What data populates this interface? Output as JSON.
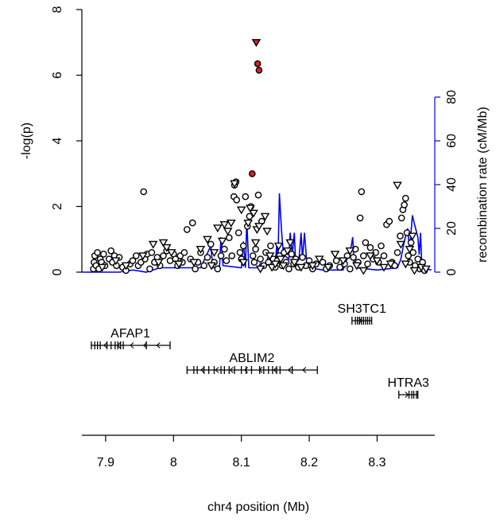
{
  "chart_data": {
    "type": "scatter",
    "xlabel": "chr4 position (Mb)",
    "ylabel": "-log(p)",
    "y2label": "recombination rate (cM/Mb)",
    "xlim": [
      7.865,
      8.385
    ],
    "ylim": [
      0,
      8
    ],
    "y2lim": [
      0,
      80
    ],
    "xticks": [
      "7.9",
      "8",
      "8.1",
      "8.2",
      "8.3"
    ],
    "yticks": [
      "0",
      "2",
      "4",
      "6",
      "8"
    ],
    "y2ticks": [
      "0",
      "20",
      "40",
      "60",
      "80"
    ],
    "colors": {
      "recomb": "#0000ee",
      "highlight": "#e02020",
      "marker": "#000000"
    },
    "highlight_points": [
      {
        "x": 8.122,
        "y": 7.0,
        "shape": "triangle-down"
      },
      {
        "x": 8.124,
        "y": 6.35,
        "shape": "circle"
      },
      {
        "x": 8.126,
        "y": 6.15,
        "shape": "circle"
      },
      {
        "x": 8.116,
        "y": 3.0,
        "shape": "circle"
      }
    ],
    "circle_points": [
      [
        7.882,
        0.1
      ],
      [
        7.883,
        0.3
      ],
      [
        7.884,
        0.5
      ],
      [
        7.886,
        0.2
      ],
      [
        7.888,
        0.6
      ],
      [
        7.89,
        0.1
      ],
      [
        7.892,
        0.4
      ],
      [
        7.894,
        0.3
      ],
      [
        7.897,
        0.55
      ],
      [
        7.899,
        0.2
      ],
      [
        7.905,
        0.4
      ],
      [
        7.908,
        0.65
      ],
      [
        7.91,
        0.3
      ],
      [
        7.913,
        0.5
      ],
      [
        7.916,
        0.2
      ],
      [
        7.92,
        0.45
      ],
      [
        7.925,
        0.15
      ],
      [
        7.93,
        0.05
      ],
      [
        7.936,
        0.25
      ],
      [
        7.94,
        0.35
      ],
      [
        7.945,
        0.5
      ],
      [
        7.948,
        0.2
      ],
      [
        7.952,
        0.3
      ],
      [
        7.956,
        2.45
      ],
      [
        7.958,
        0.4
      ],
      [
        7.961,
        0.55
      ],
      [
        7.965,
        0.1
      ],
      [
        7.968,
        0.6
      ],
      [
        7.972,
        0.3
      ],
      [
        7.976,
        0.45
      ],
      [
        7.98,
        0.2
      ],
      [
        7.985,
        0.5
      ],
      [
        7.99,
        0.65
      ],
      [
        7.995,
        0.35
      ],
      [
        8.0,
        0.55
      ],
      [
        8.003,
        0.4
      ],
      [
        8.006,
        0.2
      ],
      [
        8.01,
        0.5
      ],
      [
        8.013,
        0.3
      ],
      [
        8.016,
        0.6
      ],
      [
        8.02,
        1.3
      ],
      [
        8.025,
        0.4
      ],
      [
        8.028,
        1.5
      ],
      [
        8.032,
        0.1
      ],
      [
        8.036,
        0.3
      ],
      [
        8.04,
        0.6
      ],
      [
        8.045,
        0.2
      ],
      [
        8.05,
        0.45
      ],
      [
        8.055,
        0.85
      ],
      [
        8.06,
        0.3
      ],
      [
        8.065,
        0.1
      ],
      [
        8.07,
        0.5
      ],
      [
        8.075,
        0.7
      ],
      [
        8.078,
        0.35
      ],
      [
        8.082,
        1.05
      ],
      [
        8.086,
        0.5
      ],
      [
        8.089,
        2.3
      ],
      [
        8.09,
        2.65
      ],
      [
        8.092,
        2.75
      ],
      [
        8.093,
        2.2
      ],
      [
        8.096,
        1.2
      ],
      [
        8.098,
        0.6
      ],
      [
        8.1,
        0.4
      ],
      [
        8.103,
        0.8
      ],
      [
        8.106,
        2.3
      ],
      [
        8.109,
        1.4
      ],
      [
        8.112,
        1.7
      ],
      [
        8.114,
        2.0
      ],
      [
        8.117,
        0.5
      ],
      [
        8.119,
        0.3
      ],
      [
        8.121,
        0.7
      ],
      [
        8.125,
        2.35
      ],
      [
        8.128,
        0.4
      ],
      [
        8.13,
        1.55
      ],
      [
        8.133,
        0.2
      ],
      [
        8.136,
        0.6
      ],
      [
        8.14,
        0.3
      ],
      [
        8.143,
        0.8
      ],
      [
        8.147,
        0.4
      ],
      [
        8.15,
        0.15
      ],
      [
        8.153,
        0.35
      ],
      [
        8.156,
        0.5
      ],
      [
        8.16,
        0.2
      ],
      [
        8.163,
        0.6
      ],
      [
        8.166,
        0.3
      ],
      [
        8.17,
        0.1
      ],
      [
        8.174,
        0.55
      ],
      [
        8.177,
        0.25
      ],
      [
        8.18,
        0.4
      ],
      [
        8.184,
        0.15
      ],
      [
        8.19,
        0.45
      ],
      [
        8.195,
        0.2
      ],
      [
        8.2,
        0.35
      ],
      [
        8.205,
        0.1
      ],
      [
        8.21,
        0.25
      ],
      [
        8.22,
        0.3
      ],
      [
        8.225,
        0.1
      ],
      [
        8.23,
        0.2
      ],
      [
        8.24,
        0.35
      ],
      [
        8.245,
        0.15
      ],
      [
        8.252,
        0.25
      ],
      [
        8.256,
        0.5
      ],
      [
        8.26,
        0.1
      ],
      [
        8.265,
        0.45
      ],
      [
        8.268,
        0.7
      ],
      [
        8.272,
        0.3
      ],
      [
        8.275,
        1.65
      ],
      [
        8.277,
        2.45
      ],
      [
        8.28,
        0.5
      ],
      [
        8.283,
        0.9
      ],
      [
        8.286,
        0.25
      ],
      [
        8.29,
        0.75
      ],
      [
        8.294,
        0.4
      ],
      [
        8.298,
        0.6
      ],
      [
        8.302,
        0.3
      ],
      [
        8.306,
        0.8
      ],
      [
        8.31,
        0.5
      ],
      [
        8.314,
        1.45
      ],
      [
        8.318,
        1.55
      ],
      [
        8.322,
        0.3
      ],
      [
        8.326,
        0.2
      ],
      [
        8.33,
        0.6
      ],
      [
        8.334,
        1.1
      ],
      [
        8.336,
        1.65
      ],
      [
        8.338,
        1.9
      ],
      [
        8.34,
        2.05
      ],
      [
        8.342,
        2.25
      ],
      [
        8.344,
        1.2
      ],
      [
        8.346,
        0.5
      ],
      [
        8.348,
        0.3
      ],
      [
        8.35,
        0.9
      ],
      [
        8.353,
        0.6
      ],
      [
        8.356,
        0.2
      ],
      [
        8.36,
        0.4
      ],
      [
        8.363,
        0.1
      ],
      [
        8.367,
        0.3
      ],
      [
        8.37,
        0.05
      ]
    ],
    "triangle_points": [
      [
        7.895,
        0.15
      ],
      [
        7.915,
        0.35
      ],
      [
        7.93,
        0.2
      ],
      [
        7.955,
        0.5
      ],
      [
        7.97,
        0.85
      ],
      [
        7.978,
        0.3
      ],
      [
        7.985,
        0.9
      ],
      [
        7.99,
        0.75
      ],
      [
        7.997,
        0.6
      ],
      [
        8.008,
        0.25
      ],
      [
        8.03,
        0.3
      ],
      [
        8.04,
        0.7
      ],
      [
        8.05,
        1.0
      ],
      [
        8.056,
        0.2
      ],
      [
        8.06,
        0.6
      ],
      [
        8.065,
        1.35
      ],
      [
        8.072,
        0.95
      ],
      [
        8.075,
        1.45
      ],
      [
        8.08,
        1.25
      ],
      [
        8.085,
        1.5
      ],
      [
        8.09,
        2.7
      ],
      [
        8.1,
        1.9
      ],
      [
        8.103,
        0.3
      ],
      [
        8.11,
        1.5
      ],
      [
        8.113,
        1.95
      ],
      [
        8.118,
        1.8
      ],
      [
        8.121,
        0.9
      ],
      [
        8.123,
        1.3
      ],
      [
        8.126,
        1.4
      ],
      [
        8.128,
        0.1
      ],
      [
        8.135,
        1.7
      ],
      [
        8.138,
        1.25
      ],
      [
        8.142,
        0.5
      ],
      [
        8.145,
        0.15
      ],
      [
        8.15,
        0.25
      ],
      [
        8.155,
        0.8
      ],
      [
        8.158,
        0.4
      ],
      [
        8.162,
        0.2
      ],
      [
        8.168,
        0.65
      ],
      [
        8.172,
        0.9
      ],
      [
        8.178,
        0.3
      ],
      [
        8.188,
        0.15
      ],
      [
        8.205,
        0.2
      ],
      [
        8.215,
        0.4
      ],
      [
        8.228,
        0.15
      ],
      [
        8.238,
        0.55
      ],
      [
        8.25,
        0.35
      ],
      [
        8.26,
        0.65
      ],
      [
        8.27,
        0.2
      ],
      [
        8.28,
        0.05
      ],
      [
        8.29,
        0.5
      ],
      [
        8.3,
        0.35
      ],
      [
        8.31,
        0.15
      ],
      [
        8.32,
        0.25
      ],
      [
        8.33,
        2.65
      ],
      [
        8.335,
        0.85
      ],
      [
        8.342,
        0.25
      ],
      [
        8.348,
        0.7
      ],
      [
        8.352,
        1.1
      ],
      [
        8.355,
        0.05
      ],
      [
        8.365,
        0.15
      ],
      [
        8.372,
        0.1
      ]
    ],
    "recomb_segments": [
      [
        7.865,
        0
      ],
      [
        7.92,
        0
      ],
      [
        7.94,
        1
      ],
      [
        7.96,
        0
      ],
      [
        7.98,
        2
      ],
      [
        8.04,
        2
      ],
      [
        8.055,
        12
      ],
      [
        8.058,
        2
      ],
      [
        8.068,
        3
      ],
      [
        8.07,
        16
      ],
      [
        8.073,
        3
      ],
      [
        8.1,
        2
      ],
      [
        8.103,
        14
      ],
      [
        8.106,
        2
      ],
      [
        8.108,
        24
      ],
      [
        8.111,
        2
      ],
      [
        8.125,
        2
      ],
      [
        8.128,
        4
      ],
      [
        8.137,
        4
      ],
      [
        8.14,
        8
      ],
      [
        8.15,
        4
      ],
      [
        8.152,
        12
      ],
      [
        8.154,
        6
      ],
      [
        8.156,
        36
      ],
      [
        8.159,
        20
      ],
      [
        8.162,
        8
      ],
      [
        8.17,
        6
      ],
      [
        8.172,
        18
      ],
      [
        8.175,
        8
      ],
      [
        8.178,
        18
      ],
      [
        8.18,
        4
      ],
      [
        8.185,
        6
      ],
      [
        8.188,
        18
      ],
      [
        8.19,
        6
      ],
      [
        8.193,
        18
      ],
      [
        8.196,
        6
      ],
      [
        8.2,
        2
      ],
      [
        8.22,
        1
      ],
      [
        8.25,
        1
      ],
      [
        8.262,
        12
      ],
      [
        8.264,
        16
      ],
      [
        8.266,
        4
      ],
      [
        8.27,
        2
      ],
      [
        8.3,
        1
      ],
      [
        8.33,
        2
      ],
      [
        8.335,
        6
      ],
      [
        8.34,
        14
      ],
      [
        8.345,
        20
      ],
      [
        8.348,
        10
      ],
      [
        8.352,
        26
      ],
      [
        8.355,
        22
      ],
      [
        8.36,
        16
      ],
      [
        8.362,
        8
      ],
      [
        8.364,
        18
      ],
      [
        8.366,
        2
      ],
      [
        8.38,
        1
      ]
    ],
    "genes": [
      {
        "name": "AFAP1",
        "start": 7.878,
        "end": 7.995,
        "strand": "-",
        "exons": [
          7.879,
          7.884,
          7.888,
          7.892,
          7.902,
          7.908,
          7.914,
          7.918,
          7.922,
          7.926,
          7.96,
          7.995
        ]
      },
      {
        "name": "ABLIM2",
        "start": 8.019,
        "end": 8.212,
        "strand": "-",
        "exons": [
          8.02,
          8.03,
          8.035,
          8.045,
          8.052,
          8.06,
          8.07,
          8.075,
          8.082,
          8.09,
          8.1,
          8.107,
          8.115,
          8.127,
          8.133,
          8.14,
          8.146,
          8.152,
          8.157,
          8.175,
          8.212
        ]
      },
      {
        "name": "SH3TC1",
        "start": 8.263,
        "end": 8.292,
        "strand": "+",
        "exons": [
          8.263,
          8.268,
          8.271,
          8.274,
          8.277,
          8.28,
          8.283,
          8.286,
          8.289,
          8.292
        ]
      },
      {
        "name": "HTRA3",
        "start": 8.332,
        "end": 8.36,
        "strand": "+",
        "exons": [
          8.332,
          8.347,
          8.351,
          8.354,
          8.358,
          8.36
        ]
      }
    ]
  }
}
